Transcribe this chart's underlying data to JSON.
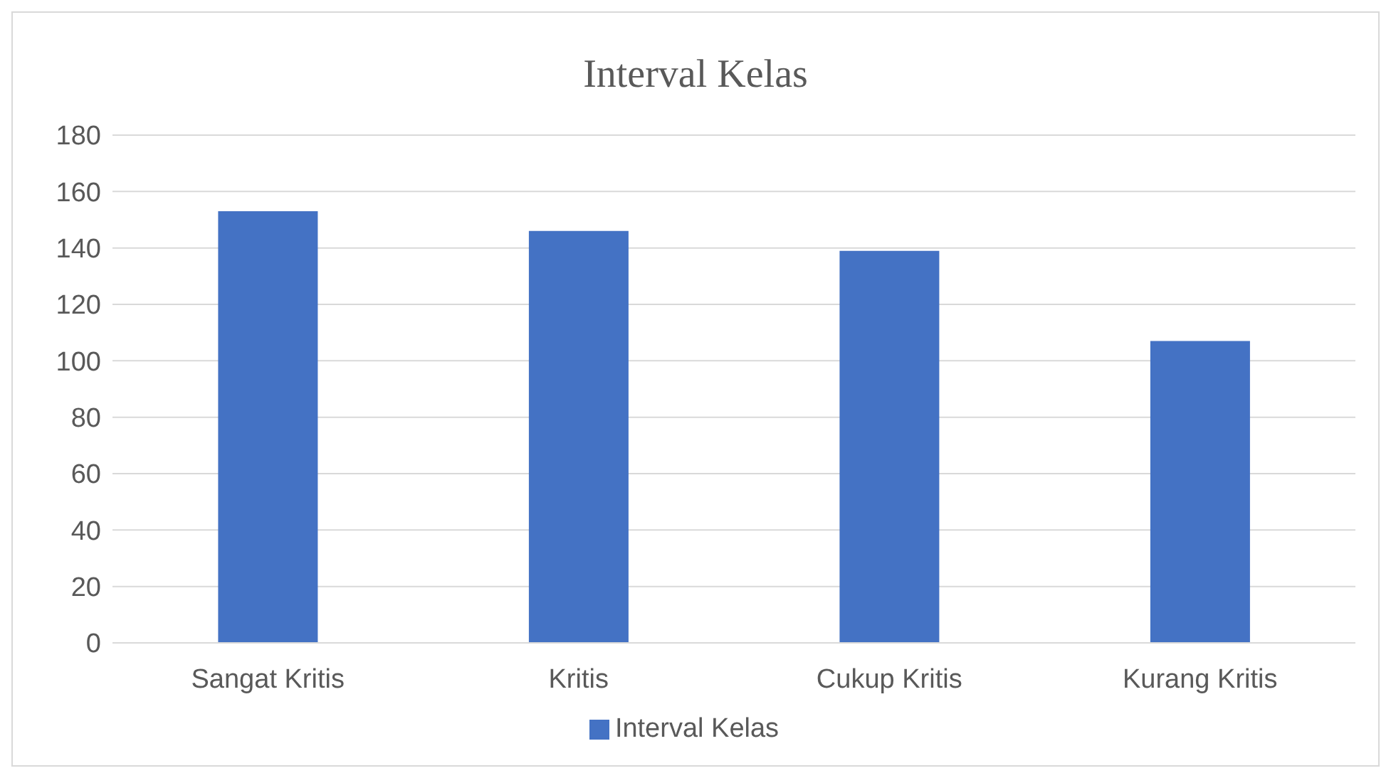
{
  "chart_data": {
    "type": "bar",
    "title": "Interval Kelas",
    "categories": [
      "Sangat Kritis",
      "Kritis",
      "Cukup Kritis",
      "Kurang Kritis"
    ],
    "series": [
      {
        "name": "Interval Kelas",
        "color": "#4472c4",
        "values": [
          153,
          146,
          139,
          107
        ]
      }
    ],
    "ylim": [
      0,
      180
    ],
    "yticks": [
      0,
      20,
      40,
      60,
      80,
      100,
      120,
      140,
      160,
      180
    ],
    "grid": "y",
    "legend": "bottom"
  }
}
